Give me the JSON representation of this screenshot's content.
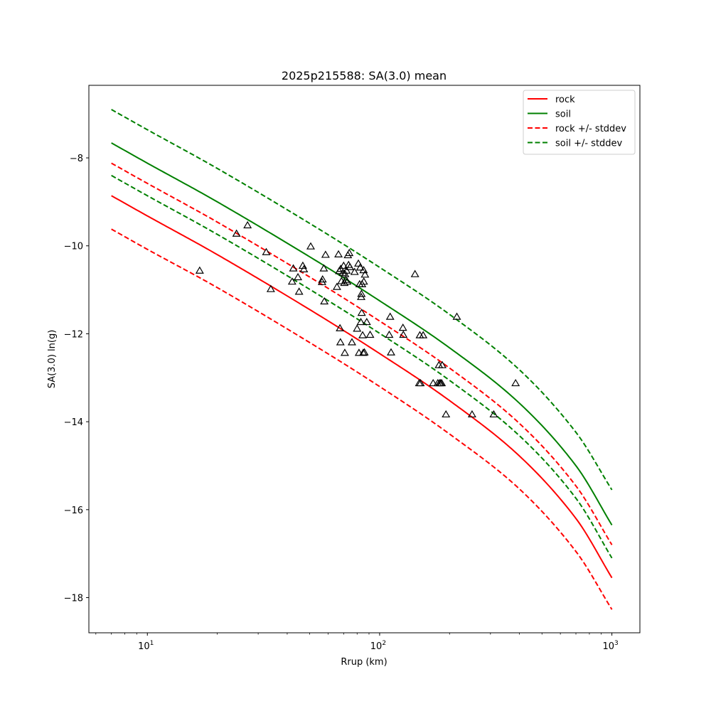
{
  "chart_data": {
    "type": "line",
    "title": "2025p215588: SA(3.0) mean",
    "xlabel": "Rrup (km)",
    "ylabel": "SA(3.0) ln(g)",
    "x_scale": "log",
    "xlim": [
      5.6,
      1320
    ],
    "ylim": [
      -18.8,
      -6.35
    ],
    "x_ticks": [
      {
        "value": 10,
        "base": "10",
        "exp": "1"
      },
      {
        "value": 100,
        "base": "10",
        "exp": "2"
      },
      {
        "value": 1000,
        "base": "10",
        "exp": "3"
      }
    ],
    "y_ticks": [
      {
        "value": -8,
        "label": "−8"
      },
      {
        "value": -10,
        "label": "−10"
      },
      {
        "value": -12,
        "label": "−12"
      },
      {
        "value": -14,
        "label": "−14"
      },
      {
        "value": -16,
        "label": "−16"
      },
      {
        "value": -18,
        "label": "−18"
      }
    ],
    "grid": false,
    "legend_position": "top-right",
    "series": [
      {
        "name": "rock",
        "color": "#ff0000",
        "style": "solid",
        "x": [
          7,
          10,
          20,
          50,
          100,
          200,
          400,
          700,
          1000
        ],
        "y": [
          -8.86,
          -9.32,
          -10.2,
          -11.45,
          -12.45,
          -13.52,
          -14.78,
          -16.2,
          -17.55
        ]
      },
      {
        "name": "soil",
        "color": "#008000",
        "style": "solid",
        "x": [
          7,
          10,
          20,
          50,
          100,
          200,
          400,
          700,
          1000
        ],
        "y": [
          -7.66,
          -8.12,
          -9.0,
          -10.25,
          -11.25,
          -12.32,
          -13.58,
          -15.0,
          -16.35
        ]
      },
      {
        "name": "rock +/- stddev",
        "color": "#ff0000",
        "style": "dashed",
        "x": [
          7,
          10,
          20,
          50,
          100,
          200,
          400,
          700,
          1000
        ],
        "y": [
          -8.12,
          -8.58,
          -9.46,
          -10.71,
          -11.71,
          -12.78,
          -14.04,
          -15.46,
          -16.8
        ]
      },
      {
        "name": "",
        "color": "#ff0000",
        "style": "dashed",
        "x": [
          7,
          10,
          20,
          50,
          100,
          200,
          400,
          700,
          1000
        ],
        "y": [
          -9.62,
          -10.08,
          -10.95,
          -12.2,
          -13.2,
          -14.28,
          -15.53,
          -16.95,
          -18.27
        ]
      },
      {
        "name": "soil +/- stddev",
        "color": "#008000",
        "style": "dashed",
        "x": [
          7,
          10,
          20,
          50,
          100,
          200,
          400,
          700,
          1000
        ],
        "y": [
          -6.9,
          -7.36,
          -8.24,
          -9.49,
          -10.49,
          -11.56,
          -12.82,
          -14.24,
          -15.55
        ]
      },
      {
        "name": "",
        "color": "#008000",
        "style": "dashed",
        "x": [
          7,
          10,
          20,
          50,
          100,
          200,
          400,
          700,
          1000
        ],
        "y": [
          -8.4,
          -8.86,
          -9.74,
          -10.99,
          -11.99,
          -13.06,
          -14.32,
          -15.74,
          -17.1
        ]
      }
    ],
    "observations": {
      "marker": "triangle",
      "color": "#000000",
      "points": [
        [
          16.8,
          -10.57
        ],
        [
          24.2,
          -9.73
        ],
        [
          27.0,
          -9.54
        ],
        [
          32.5,
          -10.15
        ],
        [
          34.0,
          -10.99
        ],
        [
          42.0,
          -10.82
        ],
        [
          42.5,
          -10.52
        ],
        [
          44.5,
          -10.72
        ],
        [
          45.0,
          -11.05
        ],
        [
          46.7,
          -10.46
        ],
        [
          47.2,
          -10.54
        ],
        [
          50.5,
          -10.02
        ],
        [
          56.5,
          -10.83
        ],
        [
          56.8,
          -10.77
        ],
        [
          57.5,
          -10.52
        ],
        [
          57.8,
          -11.27
        ],
        [
          58.5,
          -10.21
        ],
        [
          65.5,
          -10.94
        ],
        [
          66.5,
          -10.2
        ],
        [
          67.0,
          -10.58
        ],
        [
          67.5,
          -11.88
        ],
        [
          67.8,
          -12.2
        ],
        [
          68.0,
          -10.53
        ],
        [
          68.5,
          -10.81
        ],
        [
          69.5,
          -10.62
        ],
        [
          70.0,
          -10.46
        ],
        [
          70.5,
          -10.85
        ],
        [
          70.8,
          -12.44
        ],
        [
          71.0,
          -10.65
        ],
        [
          71.5,
          -10.78
        ],
        [
          72.0,
          -10.57
        ],
        [
          72.5,
          -10.82
        ],
        [
          73.0,
          -10.22
        ],
        [
          73.5,
          -10.44
        ],
        [
          74.0,
          -10.17
        ],
        [
          74.5,
          -10.49
        ],
        [
          76.0,
          -12.2
        ],
        [
          78.0,
          -10.6
        ],
        [
          80.0,
          -11.89
        ],
        [
          81.0,
          -10.41
        ],
        [
          81.5,
          -12.44
        ],
        [
          82.0,
          -10.88
        ],
        [
          82.5,
          -10.5
        ],
        [
          83.0,
          -11.74
        ],
        [
          83.3,
          -11.17
        ],
        [
          83.5,
          -11.1
        ],
        [
          83.7,
          -11.53
        ],
        [
          84.0,
          -10.88
        ],
        [
          84.5,
          -12.04
        ],
        [
          85.0,
          -12.44
        ],
        [
          85.3,
          -10.56
        ],
        [
          85.5,
          -10.82
        ],
        [
          86.0,
          -12.43
        ],
        [
          86.5,
          -10.66
        ],
        [
          88.0,
          -11.74
        ],
        [
          91.0,
          -12.03
        ],
        [
          110.0,
          -12.03
        ],
        [
          111.0,
          -11.62
        ],
        [
          112.0,
          -12.43
        ],
        [
          126.0,
          -11.87
        ],
        [
          126.5,
          -12.03
        ],
        [
          142.0,
          -10.65
        ],
        [
          148.0,
          -13.13
        ],
        [
          149.0,
          -12.04
        ],
        [
          150.0,
          -13.13
        ],
        [
          154.0,
          -12.04
        ],
        [
          170.0,
          -13.13
        ],
        [
          178.0,
          -13.13
        ],
        [
          180.0,
          -12.72
        ],
        [
          181.0,
          -13.13
        ],
        [
          183.0,
          -13.13
        ],
        [
          185.0,
          -13.13
        ],
        [
          186.0,
          -12.72
        ],
        [
          193.0,
          -13.84
        ],
        [
          215.0,
          -11.62
        ],
        [
          250.0,
          -13.84
        ],
        [
          310.0,
          -13.84
        ],
        [
          385.0,
          -13.13
        ]
      ]
    }
  }
}
